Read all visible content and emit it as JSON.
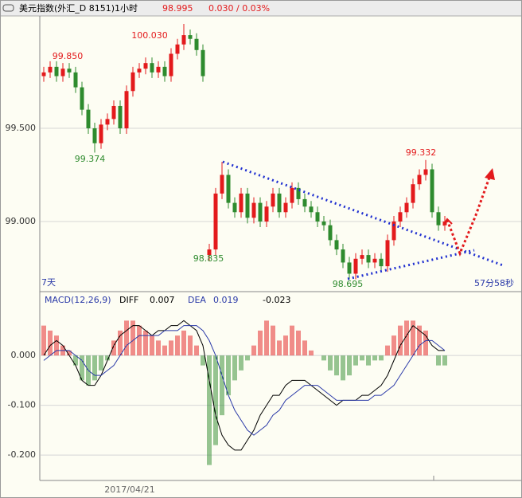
{
  "header": {
    "title": "美元指数(外汇_D 8151)1小时",
    "price": "98.995",
    "change": "0.030 / 0.03%"
  },
  "chart_data": [
    {
      "type": "candlestick",
      "ylim": [
        98.628,
        100.103
      ],
      "yticks": [
        {
          "value": 99.5,
          "label": "99.500"
        },
        {
          "value": 99,
          "label": "99.000"
        }
      ],
      "grid": true,
      "up_color": "#e31a1c",
      "down_color": "#2e8b2e",
      "range_label": "7天",
      "countdown": "57分58秒",
      "date_label": "2017/04/21",
      "annotations": [
        {
          "text": "99.850",
          "color": "#e31a1c"
        },
        {
          "text": "100.030",
          "color": "#e31a1c"
        },
        {
          "text": "99.374",
          "color": "#2e8b2e"
        },
        {
          "text": "98.835",
          "color": "#2e8b2e"
        },
        {
          "text": "98.695",
          "color": "#2e8b2e"
        },
        {
          "text": "99.332",
          "color": "#e31a1c"
        }
      ],
      "open": [
        99.78,
        99.8,
        99.83,
        99.78,
        99.82,
        99.8,
        99.72,
        99.6,
        99.5,
        99.42,
        99.52,
        99.55,
        99.62,
        99.5,
        99.7,
        99.8,
        99.82,
        99.85,
        99.8,
        99.83,
        99.78,
        99.9,
        99.95,
        100.0,
        99.98,
        99.92,
        98.82,
        98.85,
        99.15,
        99.25,
        99.1,
        99.05,
        99.15,
        99.02,
        99.1,
        99.0,
        99.08,
        99.15,
        99.05,
        99.1,
        99.18,
        99.12,
        99.08,
        99.05,
        99.0,
        98.98,
        98.9,
        98.85,
        98.78,
        98.72,
        98.8,
        98.82,
        98.78,
        98.8,
        98.76,
        98.9,
        99.0,
        99.05,
        99.1,
        99.2,
        99.25,
        99.28,
        99.05,
        98.98
      ],
      "high": [
        99.83,
        99.86,
        99.86,
        99.85,
        99.85,
        99.83,
        99.75,
        99.63,
        99.53,
        99.55,
        99.58,
        99.65,
        99.65,
        99.73,
        99.83,
        99.85,
        99.88,
        99.88,
        99.86,
        99.86,
        99.93,
        99.98,
        100.06,
        100.03,
        100.01,
        99.95,
        98.88,
        99.18,
        99.32,
        99.28,
        99.13,
        99.18,
        99.18,
        99.13,
        99.13,
        99.11,
        99.18,
        99.18,
        99.13,
        99.21,
        99.21,
        99.15,
        99.11,
        99.08,
        99.03,
        99.01,
        98.93,
        98.88,
        98.81,
        98.83,
        98.85,
        98.85,
        98.83,
        98.83,
        98.93,
        99.03,
        99.08,
        99.13,
        99.23,
        99.28,
        99.33,
        99.31,
        99.08,
        99.03
      ],
      "low": [
        99.75,
        99.77,
        99.75,
        99.75,
        99.77,
        99.69,
        99.57,
        99.47,
        99.37,
        99.39,
        99.49,
        99.52,
        99.47,
        99.47,
        99.67,
        99.77,
        99.79,
        99.77,
        99.77,
        99.75,
        99.75,
        99.87,
        99.92,
        99.95,
        99.89,
        99.75,
        98.79,
        98.82,
        99.12,
        99.07,
        99.02,
        99.02,
        98.99,
        98.99,
        98.97,
        98.97,
        99.05,
        99.02,
        99.02,
        99.07,
        99.09,
        99.05,
        99.02,
        98.97,
        98.95,
        98.87,
        98.82,
        98.75,
        98.69,
        98.69,
        98.77,
        98.75,
        98.75,
        98.73,
        98.73,
        98.87,
        98.97,
        99.02,
        99.07,
        99.17,
        99.22,
        99.02,
        98.95,
        98.95
      ],
      "close": [
        99.8,
        99.83,
        99.78,
        99.82,
        99.8,
        99.72,
        99.6,
        99.5,
        99.42,
        99.52,
        99.55,
        99.62,
        99.5,
        99.7,
        99.8,
        99.82,
        99.85,
        99.8,
        99.83,
        99.78,
        99.9,
        99.95,
        100.0,
        99.98,
        99.92,
        99.78,
        98.85,
        99.15,
        99.25,
        99.1,
        99.05,
        99.15,
        99.02,
        99.1,
        99.0,
        99.08,
        99.15,
        99.05,
        99.1,
        99.18,
        99.12,
        99.08,
        99.05,
        99.0,
        98.98,
        98.9,
        98.85,
        98.78,
        98.72,
        98.8,
        98.82,
        98.78,
        98.8,
        98.76,
        98.9,
        99.0,
        99.05,
        99.1,
        99.2,
        99.25,
        99.28,
        99.05,
        98.98,
        99.0
      ]
    },
    {
      "type": "macd",
      "title": "MACD(12,26,9)",
      "diff_label": "DIFF",
      "diff_value": "0.007",
      "dea_label": "DEA",
      "dea_value": "0.019",
      "macd_value": "-0.023",
      "ylim": [
        -0.251,
        0.125
      ],
      "yticks": [
        {
          "value": 0,
          "label": "0.000"
        },
        {
          "value": -0.1,
          "label": "-0.100"
        },
        {
          "value": -0.2,
          "label": "-0.200"
        }
      ],
      "grid": true,
      "series": [
        {
          "name": "MACD",
          "up_color": "#e31a1c",
          "down_color": "#2e8b2e",
          "values": [
            0.06,
            0.05,
            0.04,
            0.02,
            0.01,
            -0.02,
            -0.05,
            -0.06,
            -0.05,
            -0.03,
            -0.01,
            0.03,
            0.05,
            0.07,
            0.07,
            0.06,
            0.05,
            0.04,
            0.03,
            0.02,
            0.03,
            0.04,
            0.05,
            0.04,
            0.02,
            -0.02,
            -0.22,
            -0.18,
            -0.12,
            -0.08,
            -0.05,
            -0.03,
            -0.01,
            0.02,
            0.05,
            0.07,
            0.06,
            0.03,
            0.04,
            0.06,
            0.05,
            0.03,
            0.01,
            0,
            -0.01,
            -0.03,
            -0.04,
            -0.05,
            -0.04,
            -0.02,
            -0.01,
            -0.02,
            -0.01,
            -0.01,
            0.02,
            0.04,
            0.06,
            0.07,
            0.07,
            0.06,
            0.05,
            0,
            -0.02,
            -0.02
          ]
        },
        {
          "name": "DIFF",
          "color": "#000000",
          "values": [
            0,
            0.02,
            0.03,
            0.02,
            0,
            -0.02,
            -0.05,
            -0.06,
            -0.06,
            -0.04,
            -0.01,
            0.02,
            0.04,
            0.05,
            0.06,
            0.06,
            0.05,
            0.04,
            0.05,
            0.05,
            0.06,
            0.06,
            0.07,
            0.06,
            0.05,
            0.02,
            -0.05,
            -0.12,
            -0.16,
            -0.18,
            -0.19,
            -0.19,
            -0.17,
            -0.15,
            -0.12,
            -0.1,
            -0.08,
            -0.08,
            -0.06,
            -0.05,
            -0.05,
            -0.05,
            -0.06,
            -0.07,
            -0.08,
            -0.09,
            -0.1,
            -0.09,
            -0.09,
            -0.09,
            -0.08,
            -0.08,
            -0.07,
            -0.06,
            -0.04,
            -0.01,
            0.02,
            0.04,
            0.06,
            0.05,
            0.04,
            0.02,
            0.01,
            0.01
          ]
        },
        {
          "name": "DEA",
          "color": "#2b3aa8",
          "values": [
            -0.01,
            0,
            0.01,
            0.01,
            0.01,
            0,
            -0.01,
            -0.03,
            -0.04,
            -0.04,
            -0.03,
            -0.02,
            0,
            0.02,
            0.03,
            0.04,
            0.04,
            0.04,
            0.04,
            0.05,
            0.05,
            0.05,
            0.06,
            0.06,
            0.06,
            0.05,
            0.03,
            0,
            -0.04,
            -0.08,
            -0.11,
            -0.13,
            -0.15,
            -0.16,
            -0.15,
            -0.14,
            -0.12,
            -0.11,
            -0.09,
            -0.08,
            -0.07,
            -0.06,
            -0.06,
            -0.06,
            -0.07,
            -0.08,
            -0.09,
            -0.09,
            -0.09,
            -0.09,
            -0.09,
            -0.09,
            -0.08,
            -0.08,
            -0.07,
            -0.06,
            -0.04,
            -0.02,
            0,
            0.02,
            0.03,
            0.03,
            0.02,
            0.01
          ]
        }
      ]
    }
  ]
}
